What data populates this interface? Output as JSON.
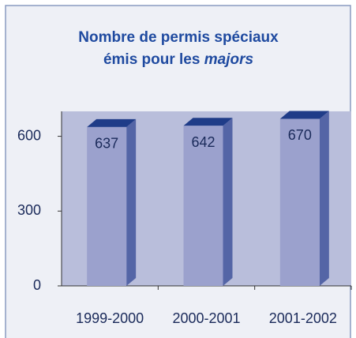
{
  "chart_data": {
    "type": "bar",
    "title": [
      "Nombre de permis spéciaux",
      "émis pour les",
      "majors"
    ],
    "categories": [
      "1999-2000",
      "2000-2001",
      "2001-2002"
    ],
    "values": [
      637,
      642,
      670
    ],
    "color": "#9ba1cd",
    "ylim": [
      0,
      700
    ],
    "yticks": [
      0,
      300,
      600
    ]
  }
}
